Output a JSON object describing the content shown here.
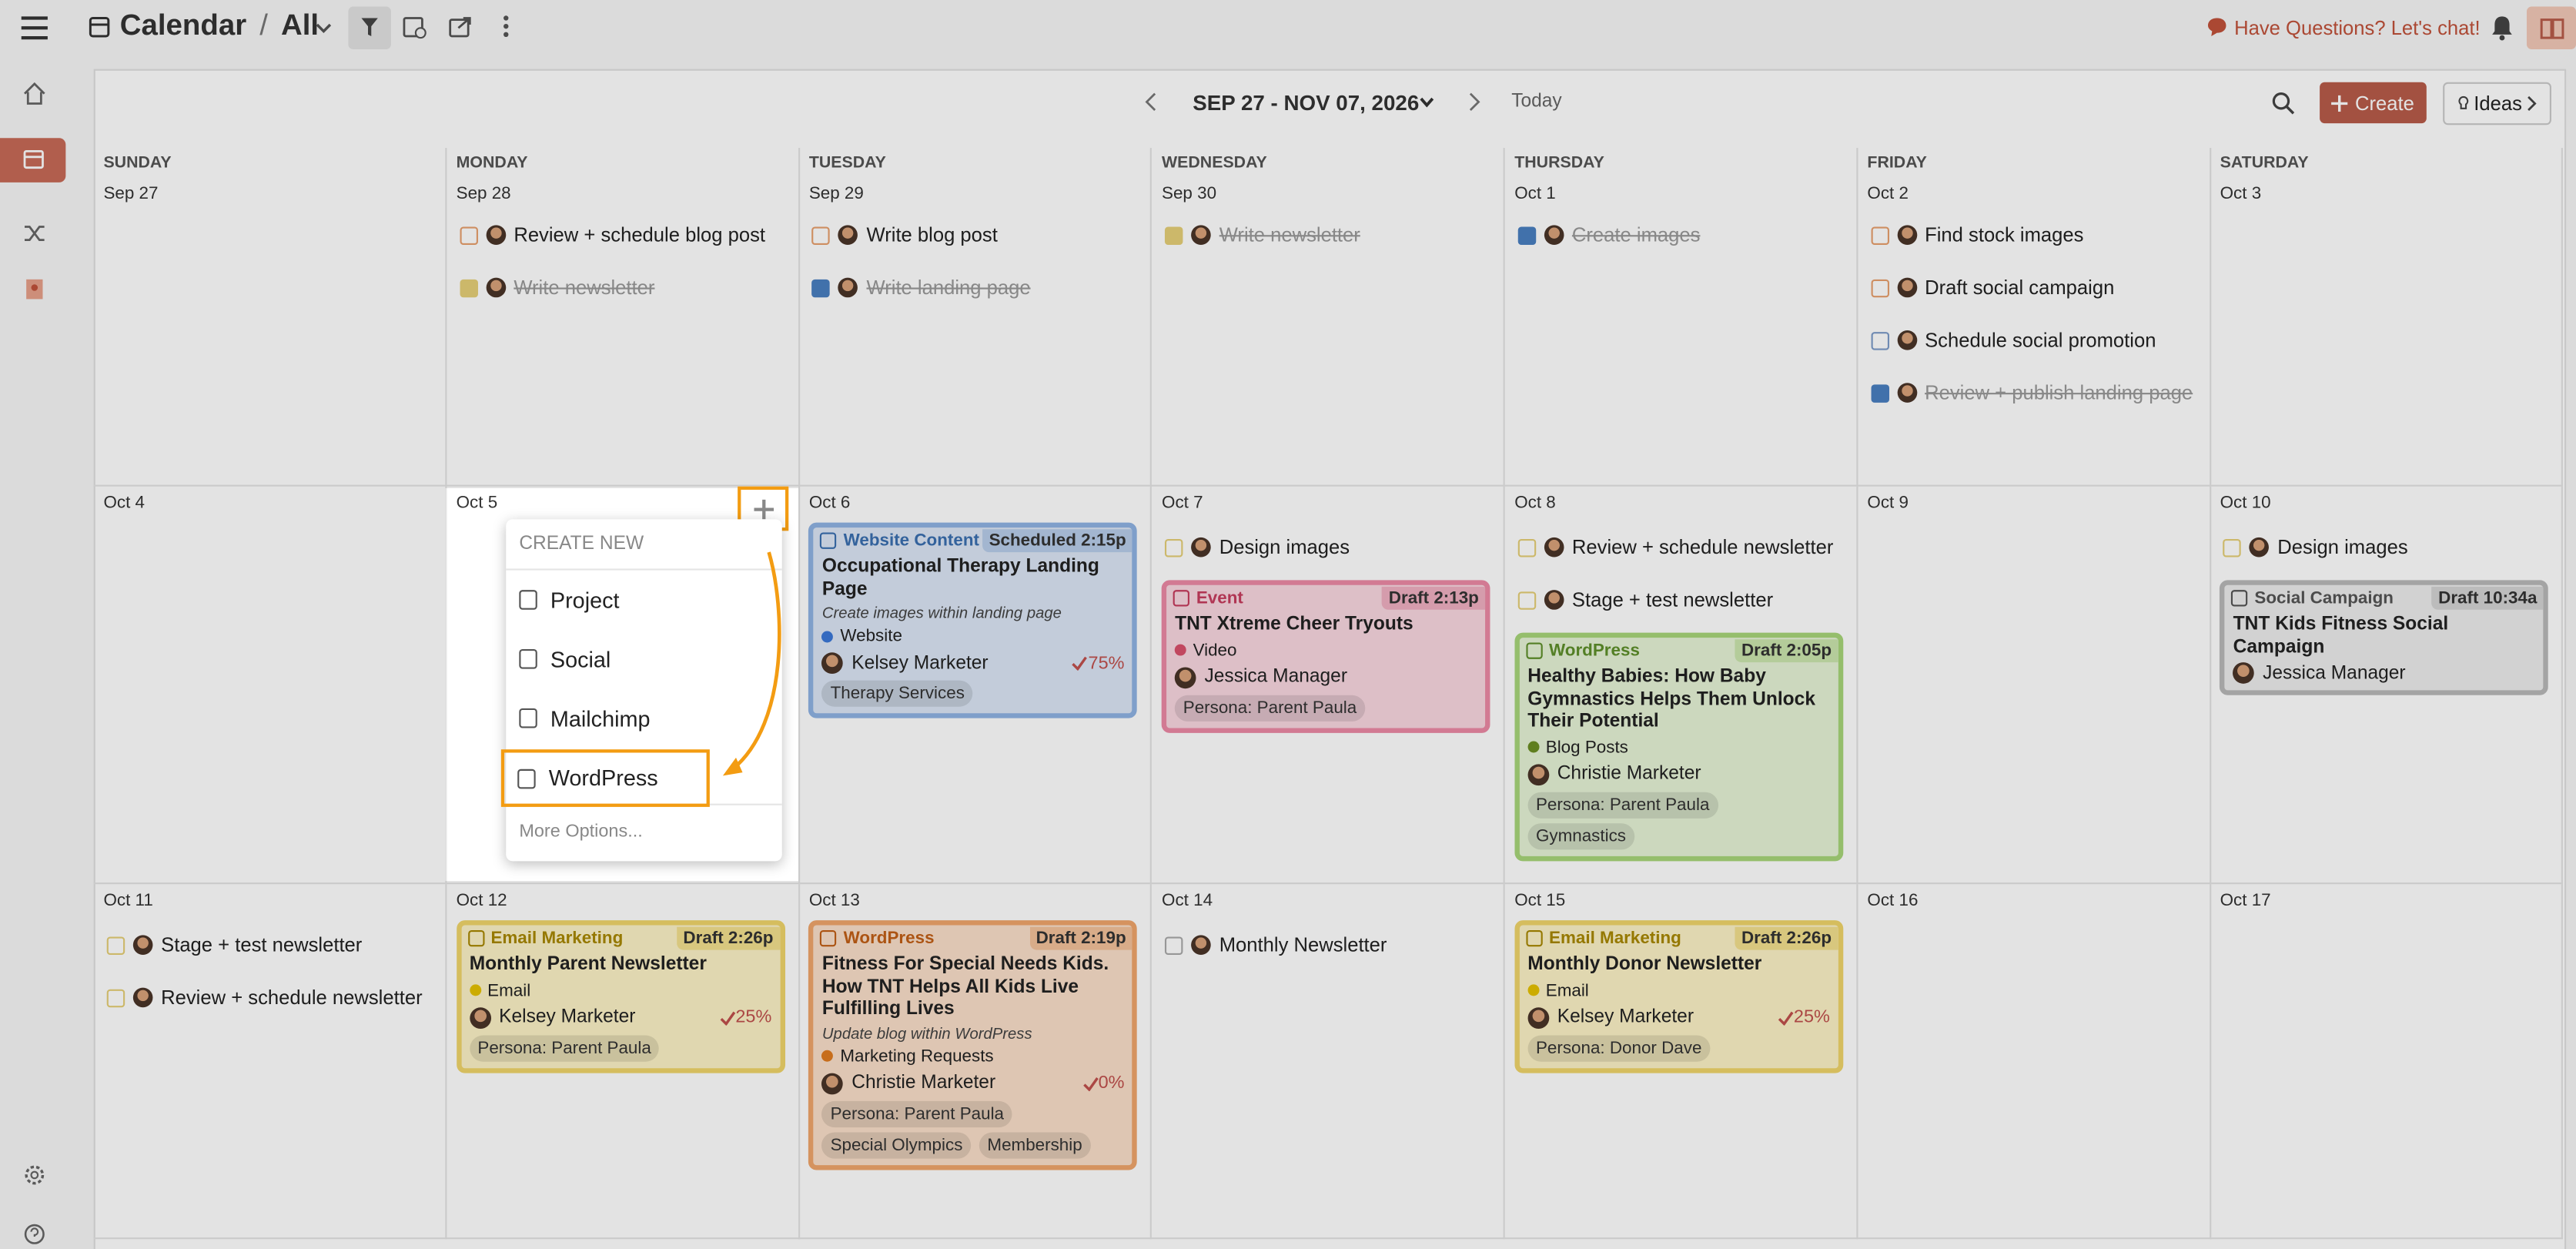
{
  "header": {
    "title": "Calendar",
    "separator": "/",
    "view": "All",
    "chat": "Have Questions? Let's chat!"
  },
  "toolbar": {
    "range": "SEP 27 - NOV 07, 2026",
    "today": "Today",
    "create": "Create",
    "ideas": "Ideas"
  },
  "weekdays": [
    "SUNDAY",
    "MONDAY",
    "TUESDAY",
    "WEDNESDAY",
    "THURSDAY",
    "FRIDAY",
    "SATURDAY"
  ],
  "weeks": [
    {
      "days": [
        {
          "date": "Sep 27",
          "tasks": [],
          "cards": []
        },
        {
          "date": "Sep 28",
          "tasks": [
            {
              "text": "Review + schedule blog post",
              "done": false,
              "box": "orange"
            },
            {
              "text": "Write newsletter",
              "done": true,
              "box": "yellow"
            }
          ],
          "cards": []
        },
        {
          "date": "Sep 29",
          "tasks": [
            {
              "text": "Write blog post",
              "done": false,
              "box": "orange"
            },
            {
              "text": "Write landing page",
              "done": true,
              "box": "blue"
            }
          ],
          "cards": []
        },
        {
          "date": "Sep 30",
          "tasks": [
            {
              "text": "Write newsletter",
              "done": true,
              "box": "yellow"
            }
          ],
          "cards": []
        },
        {
          "date": "Oct 1",
          "tasks": [
            {
              "text": "Create images",
              "done": true,
              "box": "blue"
            }
          ],
          "cards": []
        },
        {
          "date": "Oct 2",
          "tasks": [
            {
              "text": "Find stock images",
              "done": false,
              "box": "orange"
            },
            {
              "text": "Draft social campaign",
              "done": false,
              "box": "orange"
            },
            {
              "text": "Schedule social promotion",
              "done": false,
              "box": "blue"
            },
            {
              "text": "Review + publish landing page",
              "done": true,
              "box": "blue"
            }
          ],
          "cards": []
        },
        {
          "date": "Oct 3",
          "tasks": [],
          "cards": []
        }
      ]
    },
    {
      "days": [
        {
          "date": "Oct 4",
          "tasks": [],
          "cards": []
        },
        {
          "date": "Oct 5",
          "tasks": [],
          "cards": []
        },
        {
          "date": "Oct 6",
          "tasks": [],
          "cards": [
            {
              "type": "Website Content",
              "status": "Scheduled 2:15p",
              "title": "Occupational Therapy Landing Page",
              "note": "Create images within landing page",
              "tag": "Website",
              "tag_color": "#3b78d8",
              "owner": "Kelsey Marketer",
              "progress": "75%",
              "labels": [
                "Therapy Services"
              ],
              "color": "blue"
            }
          ]
        },
        {
          "date": "Oct 7",
          "tasks": [
            {
              "text": "Design images",
              "done": false,
              "box": "yellow"
            }
          ],
          "cards": [
            {
              "type": "Event",
              "status": "Draft 2:13p",
              "title": "TNT Xtreme Cheer Tryouts",
              "tag": "Video",
              "tag_color": "#d9506b",
              "owner": "Jessica Manager",
              "labels": [
                "Persona: Parent Paula"
              ],
              "color": "pink"
            }
          ]
        },
        {
          "date": "Oct 8",
          "tasks": [
            {
              "text": "Review + schedule newsletter",
              "done": false,
              "box": "yellow"
            },
            {
              "text": "Stage + test newsletter",
              "done": false,
              "box": "yellow"
            }
          ],
          "cards": [
            {
              "type": "WordPress",
              "status": "Draft 2:05p",
              "title": "Healthy Babies: How Baby Gymnastics Helps Them Unlock Their Potential",
              "tag": "Blog Posts",
              "tag_color": "#6b8e23",
              "owner": "Christie Marketer",
              "labels": [
                "Persona: Parent Paula",
                "Gymnastics"
              ],
              "color": "green"
            }
          ]
        },
        {
          "date": "Oct 9",
          "tasks": [],
          "cards": []
        },
        {
          "date": "Oct 10",
          "tasks": [
            {
              "text": "Design images",
              "done": false,
              "box": "yellow"
            }
          ],
          "cards": [
            {
              "type": "Social Campaign",
              "status": "Draft 10:34a",
              "title": "TNT Kids Fitness Social Campaign",
              "owner": "Jessica Manager",
              "labels": [],
              "color": "gray"
            }
          ]
        }
      ]
    },
    {
      "days": [
        {
          "date": "Oct 11",
          "tasks": [
            {
              "text": "Stage + test newsletter",
              "done": false,
              "box": "yellow"
            },
            {
              "text": "Review + schedule newsletter",
              "done": false,
              "box": "yellow"
            }
          ],
          "cards": []
        },
        {
          "date": "Oct 12",
          "tasks": [],
          "cards": [
            {
              "type": "Email Marketing",
              "status": "Draft 2:26p",
              "title": "Monthly Parent Newsletter",
              "tag": "Email",
              "tag_color": "#e6c200",
              "owner": "Kelsey Marketer",
              "progress": "25%",
              "labels": [
                "Persona: Parent Paula"
              ],
              "color": "yellow"
            }
          ]
        },
        {
          "date": "Oct 13",
          "tasks": [],
          "cards": [
            {
              "type": "WordPress",
              "status": "Draft 2:19p",
              "title": "Fitness For Special Needs Kids. How TNT Helps All Kids Live Fulfilling Lives",
              "note": "Update blog within WordPress",
              "tag": "Marketing Requests",
              "tag_color": "#e07b1f",
              "owner": "Christie Marketer",
              "progress": "0%",
              "labels": [
                "Persona: Parent Paula",
                "Special Olympics",
                "Membership"
              ],
              "color": "orange"
            }
          ]
        },
        {
          "date": "Oct 14",
          "tasks": [
            {
              "text": "Monthly Newsletter",
              "done": false,
              "box": "gray"
            }
          ],
          "cards": []
        },
        {
          "date": "Oct 15",
          "tasks": [],
          "cards": [
            {
              "type": "Email Marketing",
              "status": "Draft 2:26p",
              "title": "Monthly Donor Newsletter",
              "tag": "Email",
              "tag_color": "#e6c200",
              "owner": "Kelsey Marketer",
              "progress": "25%",
              "labels": [
                "Persona: Donor Dave"
              ],
              "color": "yellow"
            }
          ]
        },
        {
          "date": "Oct 16",
          "tasks": [],
          "cards": []
        },
        {
          "date": "Oct 17",
          "tasks": [],
          "cards": []
        }
      ]
    }
  ],
  "menu": {
    "title": "CREATE NEW",
    "options": [
      "Project",
      "Social",
      "Mailchimp",
      "WordPress"
    ],
    "more": "More Options..."
  }
}
